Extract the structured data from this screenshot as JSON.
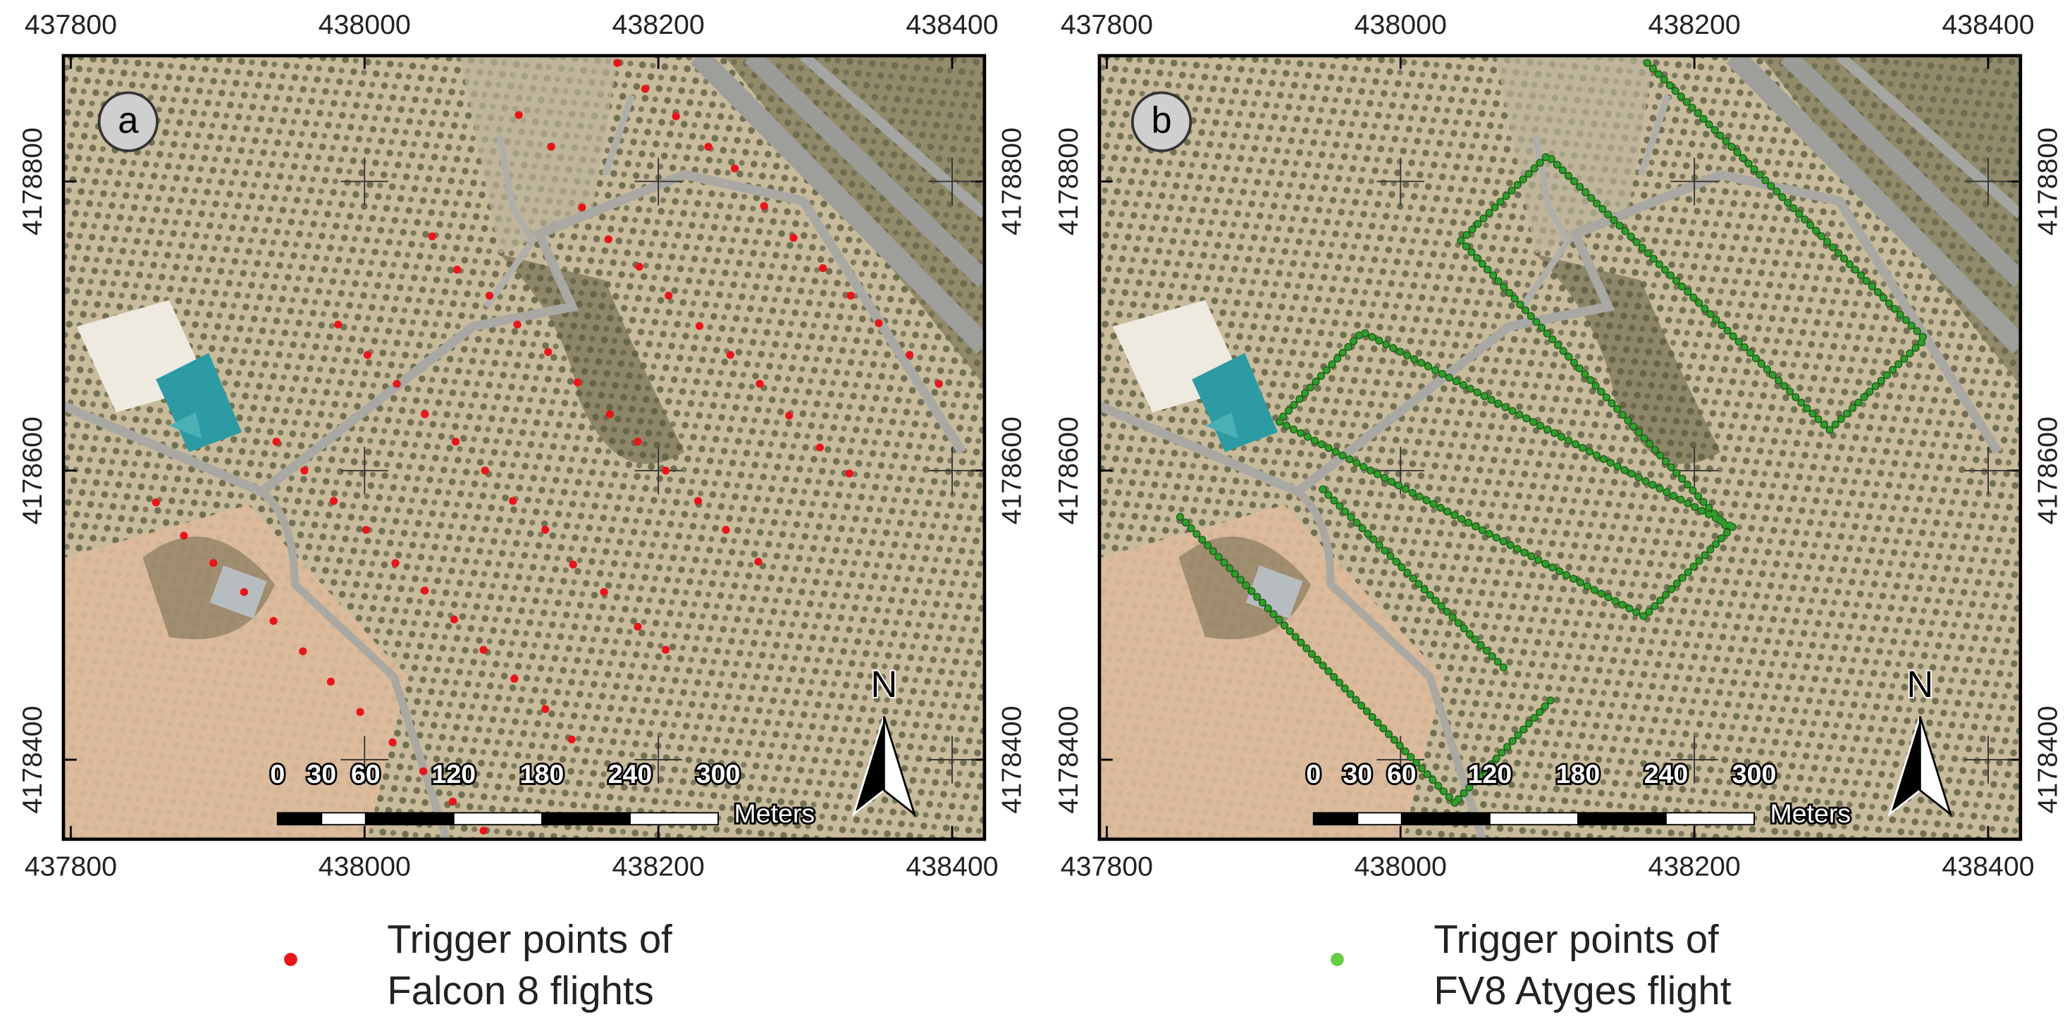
{
  "xlim": [
    437795,
    438422
  ],
  "ylim": [
    4178345,
    4178887
  ],
  "xticks": [
    437800,
    438000,
    438200,
    438400
  ],
  "yticks": [
    4178400,
    4178600,
    4178800
  ],
  "grid": true,
  "panels": [
    {
      "label": "a",
      "points": {
        "color": "#e8161b",
        "x": [
          438172,
          438191,
          438212,
          438105,
          438127,
          438234,
          438148,
          438252,
          438272,
          438166,
          438046,
          438292,
          438063,
          438187,
          438085,
          438207,
          438312,
          438331,
          437982,
          438104,
          438125,
          438228,
          438350,
          438002,
          438145,
          438249,
          438371,
          438022,
          438391,
          438167,
          438269,
          438041,
          437940,
          438062,
          438186,
          438289,
          438310,
          437959,
          438082,
          438205,
          438330,
          437858,
          437979,
          438101,
          438227,
          437877,
          438001,
          438123,
          438246,
          437897,
          438021,
          438142,
          438268,
          437918,
          438041,
          438163,
          437938,
          438061,
          438186,
          437958,
          438081,
          438205,
          437977,
          438102,
          437997,
          438123,
          438019,
          438141,
          438040,
          438060,
          438081
        ],
        "y": [
          4178882,
          4178864,
          4178845,
          4178846,
          4178824,
          4178824,
          4178782,
          4178809,
          4178783,
          4178760,
          4178762,
          4178761,
          4178739,
          4178741,
          4178721,
          4178721,
          4178740,
          4178721,
          4178701,
          4178701,
          4178682,
          4178700,
          4178702,
          4178680,
          4178661,
          4178680,
          4178680,
          4178660,
          4178660,
          4178639,
          4178660,
          4178639,
          4178620,
          4178620,
          4178620,
          4178638,
          4178616,
          4178600,
          4178600,
          4178600,
          4178598,
          4178578,
          4178579,
          4178579,
          4178579,
          4178555,
          4178559,
          4178559,
          4178559,
          4178536,
          4178536,
          4178535,
          4178537,
          4178516,
          4178517,
          4178516,
          4178496,
          4178497,
          4178492,
          4178475,
          4178476,
          4178476,
          4178454,
          4178456,
          4178433,
          4178435,
          4178412,
          4178414,
          4178392,
          4178371,
          4178351
        ]
      }
    },
    {
      "label": "b",
      "track": {
        "color": "#2f9e2a",
        "x": [
          438168,
          438357,
          438292,
          438100,
          438041,
          438222,
          null,
          438226,
          438166,
          437917,
          437974,
          438226,
          null,
          437850,
          438037,
          null,
          437947,
          438073,
          null,
          438102,
          438037
        ],
        "y": [
          4178882,
          4178691,
          4178628,
          4178818,
          4178759,
          4178561,
          null,
          4178561,
          4178499,
          4178634,
          4178696,
          4178561,
          null,
          4178568,
          4178370,
          null,
          4178587,
          4178461,
          null,
          4178441,
          4178370
        ]
      }
    }
  ],
  "scale_bar": {
    "ticks": [
      0,
      30,
      60,
      120,
      180,
      240,
      300
    ],
    "unit": "Meters"
  },
  "north": "N",
  "legend": [
    {
      "color": "#e8161b",
      "text": [
        "Trigger points of",
        "Falcon 8 flights"
      ]
    },
    {
      "color": "#66cc44",
      "text": [
        "Trigger points of",
        "FV8 Atyges flight"
      ]
    }
  ]
}
